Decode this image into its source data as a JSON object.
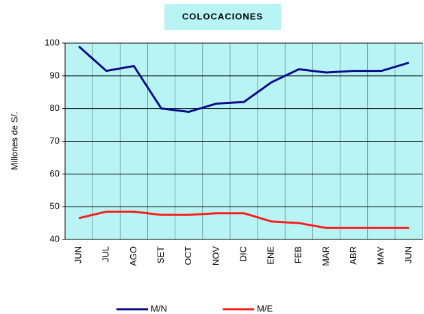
{
  "chart_data": {
    "type": "line",
    "title": "COLOCACIONES",
    "ylabel": "Millones de S/.",
    "categories": [
      "JUN",
      "JUL",
      "AGO",
      "SET",
      "OCT",
      "NOV",
      "DIC",
      "ENE",
      "FEB",
      "MAR",
      "ABR",
      "MAY",
      "JUN"
    ],
    "series": [
      {
        "name": "M/N",
        "color": "#0a0a8c",
        "values": [
          99,
          91.5,
          93,
          80,
          79,
          81.5,
          82,
          88,
          92,
          91,
          91.5,
          91.5,
          94
        ]
      },
      {
        "name": "M/E",
        "color": "#ff1a1a",
        "values": [
          46.5,
          48.5,
          48.5,
          47.5,
          47.5,
          48,
          48,
          45.5,
          45,
          43.5,
          43.5,
          43.5,
          43.5
        ]
      }
    ],
    "ylim": [
      40,
      100
    ],
    "yticks": [
      40,
      50,
      60,
      70,
      80,
      90,
      100
    ],
    "grid": true,
    "legend": "bottom"
  }
}
